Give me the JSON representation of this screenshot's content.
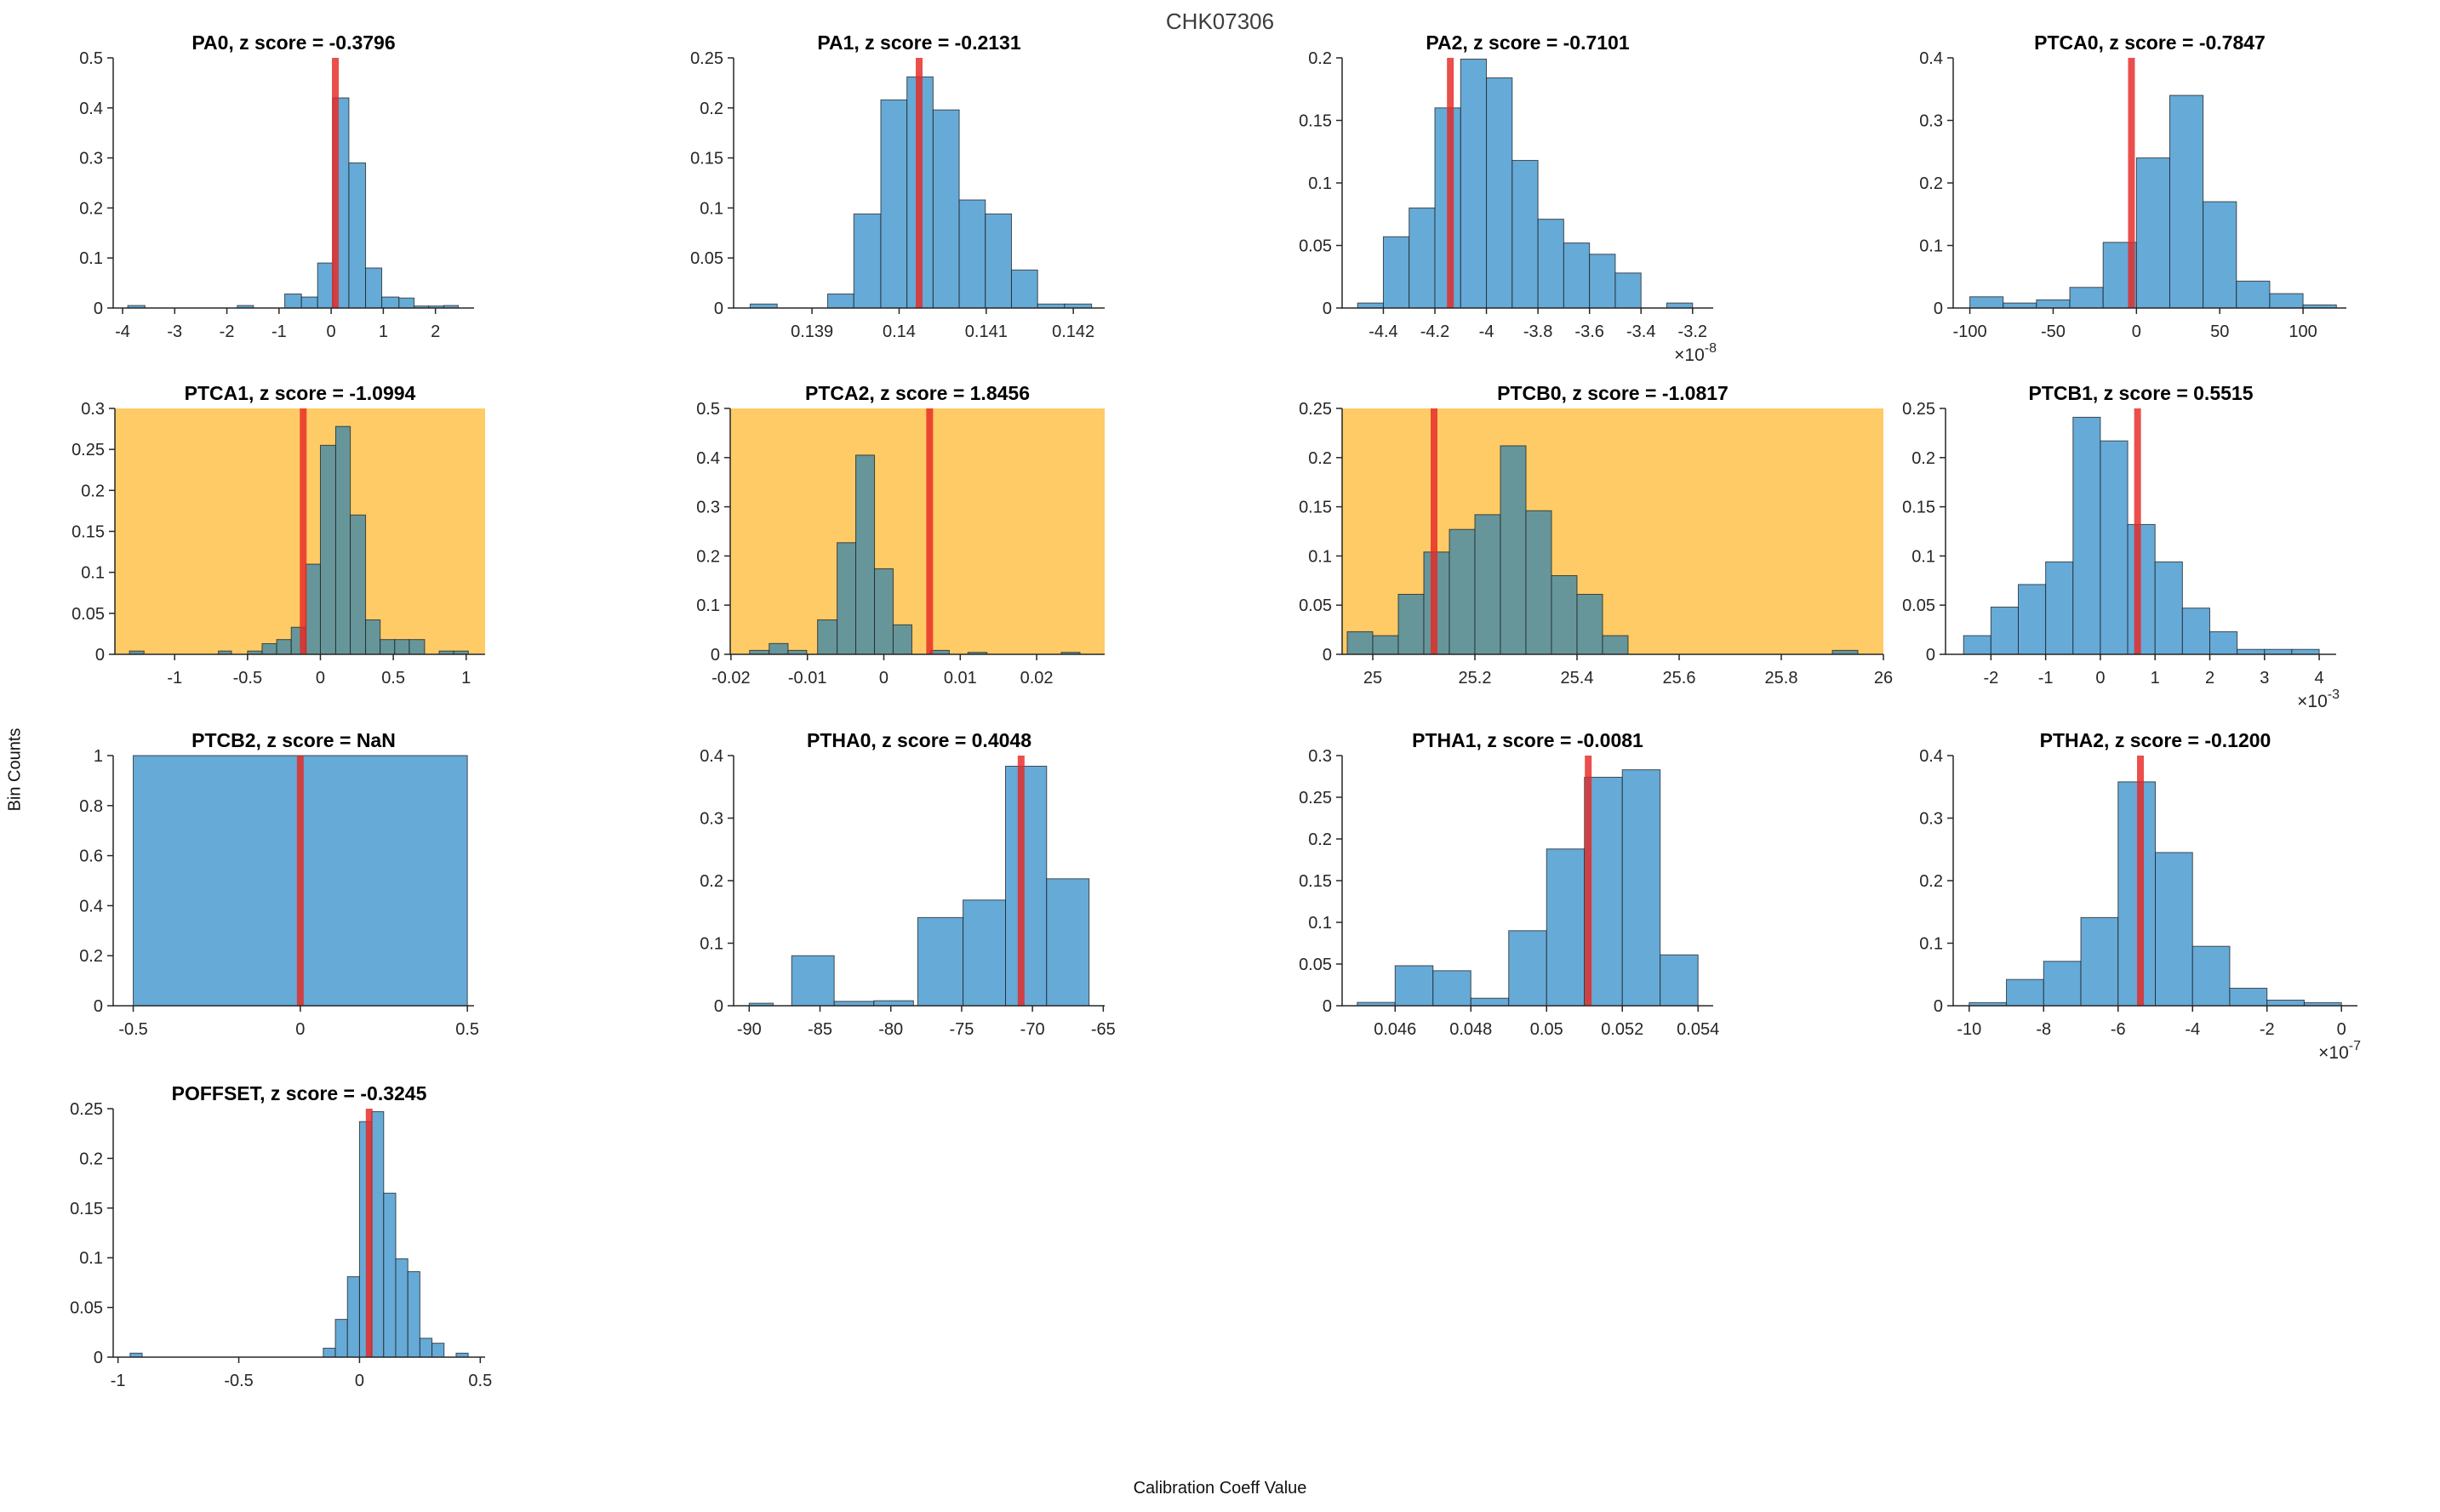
{
  "figure": {
    "title": "CHK07306",
    "xlabel": "Calibration Coeff Value",
    "ylabel": "Bin Counts"
  },
  "colors": {
    "bar_fill": "#66AAD7",
    "bar_fill_on_highlight": "#66969A",
    "bar_edge": "#1c1c1c",
    "highlight_bg": "#FFCB67",
    "red_line": "#E62825",
    "axis": "#262626",
    "tick_label": "#262626",
    "subplot_title": "#000000",
    "figure_title": "#3d3d3d"
  },
  "chart_data": [
    {
      "type": "histogram",
      "name": "PA0",
      "title": "PA0, z score = -0.3796",
      "z_score": -0.3796,
      "highlighted": false,
      "exponent": null,
      "xlim": [
        -4.18,
        2.74
      ],
      "ylim": [
        0,
        0.5
      ],
      "ytick_step": 0.1,
      "xticks": [
        [
          -4,
          "-4"
        ],
        [
          -3,
          "-3"
        ],
        [
          -2,
          "-2"
        ],
        [
          -1,
          "-1"
        ],
        [
          0,
          "0"
        ],
        [
          1,
          "1"
        ],
        [
          2,
          "2"
        ]
      ],
      "red_line_x": 0.08,
      "bars": [
        [
          -3.9,
          -3.57,
          0.005
        ],
        [
          -1.8,
          -1.49,
          0.005
        ],
        [
          -0.89,
          -0.57,
          0.028
        ],
        [
          -0.57,
          -0.26,
          0.022
        ],
        [
          -0.26,
          0.03,
          0.09
        ],
        [
          0.03,
          0.34,
          0.42
        ],
        [
          0.34,
          0.66,
          0.29
        ],
        [
          0.66,
          0.97,
          0.08
        ],
        [
          0.97,
          1.3,
          0.022
        ],
        [
          1.3,
          1.59,
          0.02
        ],
        [
          1.59,
          1.87,
          0.004
        ],
        [
          1.87,
          2.16,
          0.004
        ],
        [
          2.16,
          2.44,
          0.005
        ]
      ]
    },
    {
      "type": "histogram",
      "name": "PA1",
      "title": "PA1, z score = -0.2131",
      "z_score": -0.2131,
      "highlighted": false,
      "exponent": null,
      "xlim": [
        0.1381,
        0.14236
      ],
      "ylim": [
        0,
        0.25
      ],
      "ytick_step": 0.05,
      "xticks": [
        [
          0.139,
          "0.139"
        ],
        [
          0.14,
          "0.14"
        ],
        [
          0.141,
          "0.141"
        ],
        [
          0.142,
          "0.142"
        ]
      ],
      "red_line_x": 0.14023,
      "bars": [
        [
          0.13829,
          0.1386,
          0.004
        ],
        [
          0.13918,
          0.13948,
          0.014
        ],
        [
          0.13948,
          0.13979,
          0.094
        ],
        [
          0.13979,
          0.14009,
          0.208
        ],
        [
          0.14009,
          0.14039,
          0.231
        ],
        [
          0.14039,
          0.14069,
          0.198
        ],
        [
          0.14069,
          0.14099,
          0.108
        ],
        [
          0.14099,
          0.14129,
          0.094
        ],
        [
          0.14129,
          0.14159,
          0.038
        ],
        [
          0.14159,
          0.1419,
          0.004
        ],
        [
          0.1419,
          0.14221,
          0.004
        ]
      ]
    },
    {
      "type": "histogram",
      "name": "PA2",
      "title": "PA2, z score = -0.7101",
      "z_score": -0.7101,
      "highlighted": false,
      "exponent": {
        "base": "×10",
        "power": "-8"
      },
      "xlim": [
        -4.56,
        -3.12
      ],
      "ylim": [
        0,
        0.2
      ],
      "ytick_step": 0.05,
      "xticks": [
        [
          -4.4,
          "-4.4"
        ],
        [
          -4.2,
          "-4.2"
        ],
        [
          -4.0,
          "-4"
        ],
        [
          -3.8,
          "-3.8"
        ],
        [
          -3.6,
          "-3.6"
        ],
        [
          -3.4,
          "-3.4"
        ],
        [
          -3.2,
          "-3.2"
        ]
      ],
      "red_line_x": -4.14,
      "bars": [
        [
          -4.5,
          -4.4,
          0.004
        ],
        [
          -4.4,
          -4.3,
          0.057
        ],
        [
          -4.3,
          -4.2,
          0.08
        ],
        [
          -4.2,
          -4.1,
          0.16
        ],
        [
          -4.1,
          -4.0,
          0.199
        ],
        [
          -4.0,
          -3.9,
          0.184
        ],
        [
          -3.9,
          -3.8,
          0.118
        ],
        [
          -3.8,
          -3.7,
          0.071
        ],
        [
          -3.7,
          -3.6,
          0.052
        ],
        [
          -3.6,
          -3.5,
          0.043
        ],
        [
          -3.5,
          -3.4,
          0.028
        ],
        [
          -3.3,
          -3.2,
          0.004
        ]
      ]
    },
    {
      "type": "histogram",
      "name": "PTCA0",
      "title": "PTCA0, z score = -0.7847",
      "z_score": -0.7847,
      "highlighted": false,
      "exponent": null,
      "xlim": [
        -110,
        126
      ],
      "ylim": [
        0,
        0.4
      ],
      "ytick_step": 0.1,
      "xticks": [
        [
          -100,
          "-100"
        ],
        [
          -50,
          "-50"
        ],
        [
          0,
          "0"
        ],
        [
          50,
          "50"
        ],
        [
          100,
          "100"
        ]
      ],
      "red_line_x": -3,
      "bars": [
        [
          -100,
          -80,
          0.018
        ],
        [
          -80,
          -60,
          0.008
        ],
        [
          -60,
          -40,
          0.013
        ],
        [
          -40,
          -20,
          0.033
        ],
        [
          -20,
          0,
          0.105
        ],
        [
          0,
          20,
          0.24
        ],
        [
          20,
          40,
          0.34
        ],
        [
          40,
          60,
          0.17
        ],
        [
          60,
          80,
          0.043
        ],
        [
          80,
          100,
          0.023
        ],
        [
          100,
          120,
          0.005
        ]
      ]
    },
    {
      "type": "histogram",
      "name": "PTCA1",
      "title": "PTCA1, z score = -1.0994",
      "z_score": -1.0994,
      "highlighted": true,
      "exponent": null,
      "xlim": [
        -1.41,
        1.13
      ],
      "ylim": [
        0,
        0.3
      ],
      "ytick_step": 0.05,
      "xticks": [
        [
          -1,
          "-1"
        ],
        [
          -0.5,
          "-0.5"
        ],
        [
          0,
          "0"
        ],
        [
          0.5,
          "0.5"
        ],
        [
          1,
          "1"
        ]
      ],
      "red_line_x": -0.118,
      "bars": [
        [
          -1.31,
          -1.21,
          0.004
        ],
        [
          -0.7,
          -0.61,
          0.004
        ],
        [
          -0.5,
          -0.4,
          0.004
        ],
        [
          -0.4,
          -0.3,
          0.013
        ],
        [
          -0.3,
          -0.2,
          0.018
        ],
        [
          -0.2,
          -0.1,
          0.033
        ],
        [
          -0.1,
          0,
          0.11
        ],
        [
          0,
          0.105,
          0.255
        ],
        [
          0.105,
          0.205,
          0.278
        ],
        [
          0.205,
          0.31,
          0.17
        ],
        [
          0.31,
          0.41,
          0.042
        ],
        [
          0.41,
          0.51,
          0.018
        ],
        [
          0.51,
          0.61,
          0.018
        ],
        [
          0.61,
          0.715,
          0.018
        ],
        [
          0.815,
          0.915,
          0.004
        ],
        [
          0.915,
          1.015,
          0.004
        ]
      ]
    },
    {
      "type": "histogram",
      "name": "PTCA2",
      "title": "PTCA2, z score = 1.8456",
      "z_score": 1.8456,
      "highlighted": true,
      "exponent": null,
      "xlim": [
        -0.0201,
        0.0289
      ],
      "ylim": [
        0,
        0.5
      ],
      "ytick_step": 0.1,
      "xticks": [
        [
          -0.02,
          "-0.02"
        ],
        [
          -0.01,
          "-0.01"
        ],
        [
          0,
          "0"
        ],
        [
          0.01,
          "0.01"
        ],
        [
          0.02,
          "0.02"
        ]
      ],
      "red_line_x": 0.006,
      "bars": [
        [
          -0.01756,
          -0.015,
          0.008
        ],
        [
          -0.015,
          -0.01253,
          0.022
        ],
        [
          -0.01253,
          -0.01009,
          0.008
        ],
        [
          -0.00867,
          -0.00611,
          0.07
        ],
        [
          -0.00611,
          -0.00367,
          0.227
        ],
        [
          -0.00367,
          -0.00122,
          0.405
        ],
        [
          -0.00122,
          0.00122,
          0.174
        ],
        [
          0.00122,
          0.00367,
          0.06
        ],
        [
          0.00611,
          0.00856,
          0.008
        ],
        [
          0.011,
          0.0135,
          0.004
        ],
        [
          0.02322,
          0.02567,
          0.004
        ]
      ]
    },
    {
      "type": "histogram",
      "name": "PTCB0",
      "title": "PTCB0, z score = -1.0817",
      "z_score": -1.0817,
      "highlighted": true,
      "exponent": null,
      "xlim": [
        24.94,
        26.0
      ],
      "ylim": [
        0,
        0.25
      ],
      "ytick_step": 0.05,
      "xticks": [
        [
          25,
          "25"
        ],
        [
          25.2,
          "25.2"
        ],
        [
          25.4,
          "25.4"
        ],
        [
          25.6,
          "25.6"
        ],
        [
          25.8,
          "25.8"
        ],
        [
          26,
          "26"
        ]
      ],
      "red_line_x": 25.12,
      "bars": [
        [
          24.95,
          25.0,
          0.023
        ],
        [
          25.0,
          25.05,
          0.019
        ],
        [
          25.05,
          25.1,
          0.061
        ],
        [
          25.1,
          25.15,
          0.104
        ],
        [
          25.15,
          25.2,
          0.127
        ],
        [
          25.2,
          25.25,
          0.142
        ],
        [
          25.25,
          25.3,
          0.212
        ],
        [
          25.3,
          25.35,
          0.146
        ],
        [
          25.35,
          25.4,
          0.08
        ],
        [
          25.4,
          25.45,
          0.061
        ],
        [
          25.45,
          25.5,
          0.019
        ],
        [
          25.9,
          25.95,
          0.004
        ]
      ]
    },
    {
      "type": "histogram",
      "name": "PTCB1",
      "title": "PTCB1, z score = 0.5515",
      "z_score": 0.5515,
      "highlighted": false,
      "exponent": {
        "base": "×10",
        "power": "-3"
      },
      "xlim": [
        -2.83,
        4.31
      ],
      "ylim": [
        0,
        0.25
      ],
      "ytick_step": 0.05,
      "xticks": [
        [
          -2,
          "-2"
        ],
        [
          -1,
          "-1"
        ],
        [
          0,
          "0"
        ],
        [
          1,
          "1"
        ],
        [
          2,
          "2"
        ],
        [
          3,
          "3"
        ],
        [
          4,
          "4"
        ]
      ],
      "red_line_x": 0.68,
      "bars": [
        [
          -2.5,
          -2,
          0.019
        ],
        [
          -2,
          -1.5,
          0.048
        ],
        [
          -1.5,
          -1,
          0.071
        ],
        [
          -1,
          -0.5,
          0.094
        ],
        [
          -0.5,
          0,
          0.241
        ],
        [
          0,
          0.5,
          0.217
        ],
        [
          0.5,
          1,
          0.132
        ],
        [
          1,
          1.5,
          0.094
        ],
        [
          1.5,
          2,
          0.047
        ],
        [
          2,
          2.5,
          0.023
        ],
        [
          2.5,
          3,
          0.005
        ],
        [
          3,
          3.5,
          0.005
        ],
        [
          3.5,
          4,
          0.005
        ]
      ]
    },
    {
      "type": "histogram",
      "name": "PTCB2",
      "title": "PTCB2, z score = NaN",
      "z_score": "NaN",
      "highlighted": false,
      "exponent": null,
      "xlim": [
        -0.56,
        0.52
      ],
      "ylim": [
        0,
        1
      ],
      "ytick_step": 0.2,
      "xticks": [
        [
          -0.5,
          "-0.5"
        ],
        [
          0,
          "0"
        ],
        [
          0.5,
          "0.5"
        ]
      ],
      "red_line_x": 0,
      "bars": [
        [
          -0.5,
          0.5,
          1
        ]
      ]
    },
    {
      "type": "histogram",
      "name": "PTHA0",
      "title": "PTHA0, z score = 0.4048",
      "z_score": 0.4048,
      "highlighted": false,
      "exponent": null,
      "xlim": [
        -91.1,
        -64.9
      ],
      "ylim": [
        0,
        0.4
      ],
      "ytick_step": 0.1,
      "xticks": [
        [
          -90,
          "-90"
        ],
        [
          -85,
          "-85"
        ],
        [
          -80,
          "-80"
        ],
        [
          -75,
          "-75"
        ],
        [
          -70,
          "-70"
        ],
        [
          -65,
          "-65"
        ]
      ],
      "red_line_x": -70.8,
      "bars": [
        [
          -90,
          -88.3,
          0.004
        ],
        [
          -87,
          -84,
          0.08
        ],
        [
          -84,
          -81.2,
          0.007
        ],
        [
          -81.2,
          -78.4,
          0.008
        ],
        [
          -78.1,
          -74.9,
          0.141
        ],
        [
          -74.9,
          -71.9,
          0.169
        ],
        [
          -71.9,
          -69.0,
          0.383
        ],
        [
          -69.0,
          -66.0,
          0.203
        ]
      ]
    },
    {
      "type": "histogram",
      "name": "PTHA1",
      "title": "PTHA1, z score = -0.0081",
      "z_score": -0.0081,
      "highlighted": false,
      "exponent": null,
      "xlim": [
        0.0446,
        0.0544
      ],
      "ylim": [
        0,
        0.3
      ],
      "ytick_step": 0.05,
      "xticks": [
        [
          0.046,
          "0.046"
        ],
        [
          0.048,
          "0.048"
        ],
        [
          0.05,
          "0.05"
        ],
        [
          0.052,
          "0.052"
        ],
        [
          0.054,
          "0.054"
        ]
      ],
      "red_line_x": 0.0511,
      "bars": [
        [
          0.045,
          0.046,
          0.004
        ],
        [
          0.046,
          0.047,
          0.048
        ],
        [
          0.047,
          0.048,
          0.042
        ],
        [
          0.048,
          0.049,
          0.009
        ],
        [
          0.049,
          0.05,
          0.09
        ],
        [
          0.05,
          0.051,
          0.188
        ],
        [
          0.051,
          0.052,
          0.274
        ],
        [
          0.052,
          0.053,
          0.283
        ],
        [
          0.053,
          0.054,
          0.061
        ]
      ]
    },
    {
      "type": "histogram",
      "name": "PTHA2",
      "title": "PTHA2, z score = -0.1200",
      "z_score": -0.12,
      "highlighted": false,
      "exponent": {
        "base": "×10",
        "power": "-7"
      },
      "xlim": [
        -10.43,
        0.43
      ],
      "ylim": [
        0,
        0.4
      ],
      "ytick_step": 0.1,
      "xticks": [
        [
          -10,
          "-10"
        ],
        [
          -8,
          "-8"
        ],
        [
          -6,
          "-6"
        ],
        [
          -4,
          "-4"
        ],
        [
          -2,
          "-2"
        ],
        [
          0,
          "0"
        ]
      ],
      "red_line_x": -5.4,
      "bars": [
        [
          -10,
          -9,
          0.005
        ],
        [
          -9,
          -8,
          0.042
        ],
        [
          -8,
          -7,
          0.071
        ],
        [
          -7,
          -6,
          0.141
        ],
        [
          -6,
          -5,
          0.358
        ],
        [
          -5,
          -4,
          0.245
        ],
        [
          -4,
          -3,
          0.095
        ],
        [
          -3,
          -2,
          0.028
        ],
        [
          -2,
          -1,
          0.009
        ],
        [
          -1,
          0,
          0.005
        ]
      ]
    },
    {
      "type": "histogram",
      "name": "POFFSET",
      "title": "POFFSET, z score = -0.3245",
      "z_score": -0.3245,
      "highlighted": false,
      "exponent": null,
      "xlim": [
        -1.02,
        0.52
      ],
      "ylim": [
        0,
        0.25
      ],
      "ytick_step": 0.05,
      "xticks": [
        [
          -1,
          "-1"
        ],
        [
          -0.5,
          "-0.5"
        ],
        [
          0,
          "0"
        ],
        [
          0.5,
          "0.5"
        ]
      ],
      "red_line_x": 0.04,
      "bars": [
        [
          -0.95,
          -0.9,
          0.004
        ],
        [
          -0.15,
          -0.1,
          0.009
        ],
        [
          -0.1,
          -0.05,
          0.038
        ],
        [
          -0.05,
          0,
          0.081
        ],
        [
          0,
          0.05,
          0.237
        ],
        [
          0.05,
          0.1,
          0.247
        ],
        [
          0.1,
          0.15,
          0.165
        ],
        [
          0.15,
          0.2,
          0.099
        ],
        [
          0.2,
          0.25,
          0.086
        ],
        [
          0.25,
          0.3,
          0.019
        ],
        [
          0.3,
          0.35,
          0.014
        ],
        [
          0.4,
          0.45,
          0.004
        ]
      ]
    }
  ]
}
